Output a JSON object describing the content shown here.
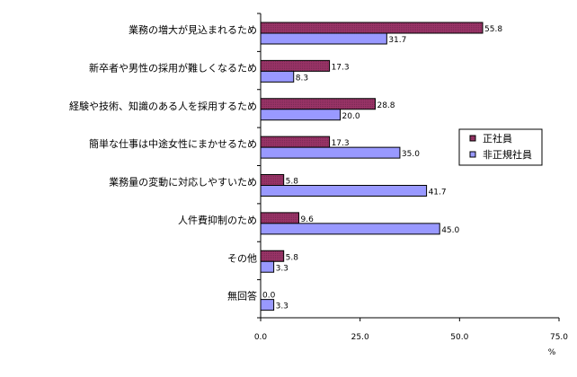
{
  "chart_data": {
    "type": "bar",
    "orientation": "horizontal",
    "categories": [
      "業務の増大が見込まれるため",
      "新卒者や男性の採用が難しくなるため",
      "経験や技術、知識のある人を採用するため",
      "簡単な仕事は中途女性にまかせるため",
      "業務量の変動に対応しやすいため",
      "人件費抑制のため",
      "その他",
      "無回答"
    ],
    "series": [
      {
        "name": "正社員",
        "values": [
          55.8,
          17.3,
          28.8,
          17.3,
          5.8,
          9.6,
          5.8,
          0.0
        ],
        "value_labels": [
          "55.8",
          "17.3",
          "28.8",
          "17.3",
          "5.8",
          "9.6",
          "5.8",
          "0.0"
        ],
        "color": "#993366"
      },
      {
        "name": "非正規社員",
        "values": [
          31.7,
          8.3,
          20.0,
          35.0,
          41.7,
          45.0,
          3.3,
          3.3
        ],
        "value_labels": [
          "31.7",
          "8.3",
          "20.0",
          "35.0",
          "41.7",
          "45.0",
          "3.3",
          "3.3"
        ],
        "color": "#9999ff"
      }
    ],
    "xlim": [
      0,
      75
    ],
    "xticks": [
      "0.0",
      "25.0",
      "50.0",
      "75.0"
    ],
    "xunit": "%",
    "grid": false,
    "legend_position": "right"
  }
}
